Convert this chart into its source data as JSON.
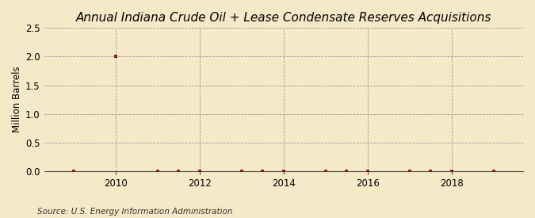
{
  "title": "Annual Indiana Crude Oil + Lease Condensate Reserves Acquisitions",
  "ylabel": "Million Barrels",
  "source": "Source: U.S. Energy Information Administration",
  "background_color": "#f5e9c8",
  "plot_bg_color": "#f5e9c8",
  "xlim": [
    2008.3,
    2019.7
  ],
  "ylim": [
    0.0,
    2.5
  ],
  "yticks": [
    0.0,
    0.5,
    1.0,
    1.5,
    2.0,
    2.5
  ],
  "xticks": [
    2010,
    2012,
    2014,
    2016,
    2018
  ],
  "years": [
    2009,
    2010,
    2011,
    2011.5,
    2012,
    2013,
    2013.5,
    2014,
    2015,
    2015.5,
    2016,
    2017,
    2017.5,
    2018,
    2019
  ],
  "values": [
    0.0,
    2.0,
    0.0,
    0.0,
    0.0,
    0.0,
    0.0,
    0.0,
    0.0,
    0.0,
    0.0,
    0.0,
    0.0,
    0.0,
    0.0
  ],
  "marker_color": "#8b1a1a",
  "marker_size": 3.5,
  "grid_color": "#999999",
  "grid_linestyle": "--",
  "title_fontsize": 11,
  "label_fontsize": 8.5,
  "tick_fontsize": 8.5,
  "source_fontsize": 7.5
}
